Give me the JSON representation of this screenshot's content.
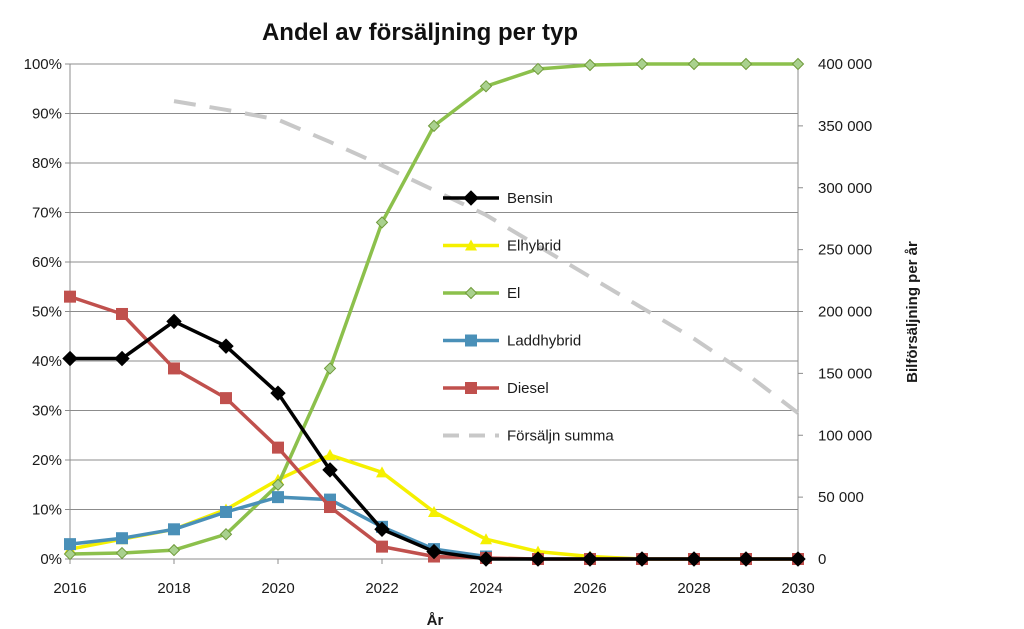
{
  "chart_data": {
    "type": "line",
    "title": "Andel av försäljning per typ",
    "xlabel": "År",
    "ylabel": "",
    "y2label": "Bilförsäljning per år",
    "xlim": [
      2016,
      2030
    ],
    "ylim": [
      0,
      100
    ],
    "y2lim": [
      0,
      400000
    ],
    "x_ticks": [
      "2016",
      "2018",
      "2020",
      "2022",
      "2024",
      "2026",
      "2028",
      "2030"
    ],
    "y_ticks": [
      "0%",
      "10%",
      "20%",
      "30%",
      "40%",
      "50%",
      "60%",
      "70%",
      "80%",
      "90%",
      "100%"
    ],
    "y2_ticks": [
      "0",
      "50 000",
      "100 000",
      "150 000",
      "200 000",
      "250 000",
      "300 000",
      "350 000",
      "400 000"
    ],
    "grid": true,
    "legend_position": "center",
    "series": [
      {
        "name": "Bensin",
        "axis": "left",
        "color": "#000000",
        "marker": "diamond",
        "dash": false,
        "x": [
          2016,
          2017,
          2018,
          2019,
          2020,
          2021,
          2022,
          2023,
          2024,
          2025,
          2026,
          2027,
          2028,
          2029,
          2030
        ],
        "values": [
          40.5,
          40.5,
          48,
          43,
          33.5,
          18,
          6,
          1.5,
          0,
          0,
          0,
          0,
          0,
          0,
          0
        ]
      },
      {
        "name": "Elhybrid",
        "axis": "left",
        "color": "#f5f000",
        "marker": "triangle",
        "dash": false,
        "x": [
          2016,
          2017,
          2018,
          2019,
          2020,
          2021,
          2022,
          2023,
          2024,
          2025,
          2026,
          2027,
          2028,
          2029,
          2030
        ],
        "values": [
          2,
          4,
          6,
          10,
          16,
          21,
          17.5,
          9.5,
          4,
          1.5,
          0.5,
          0,
          0,
          0,
          0
        ]
      },
      {
        "name": "El",
        "axis": "left",
        "color": "#8cc04c",
        "marker": "diamond",
        "dash": false,
        "x": [
          2016,
          2017,
          2018,
          2019,
          2020,
          2021,
          2022,
          2023,
          2024,
          2025,
          2026,
          2027,
          2028,
          2029,
          2030
        ],
        "values": [
          1,
          1.2,
          1.8,
          5,
          15,
          38.5,
          68,
          87.5,
          95.5,
          99,
          99.8,
          100,
          100,
          100,
          100
        ]
      },
      {
        "name": "Laddhybrid",
        "axis": "left",
        "color": "#4a90b8",
        "marker": "square",
        "dash": false,
        "x": [
          2016,
          2017,
          2018,
          2019,
          2020,
          2021,
          2022,
          2023,
          2024
        ],
        "values": [
          3,
          4.2,
          6,
          9.5,
          12.5,
          12,
          6.5,
          2,
          0.5
        ]
      },
      {
        "name": "Diesel",
        "axis": "left",
        "color": "#c0504d",
        "marker": "square",
        "dash": false,
        "x": [
          2016,
          2017,
          2018,
          2019,
          2020,
          2021,
          2022,
          2023,
          2024,
          2025,
          2026,
          2027,
          2028,
          2029,
          2030
        ],
        "values": [
          53,
          49.5,
          38.5,
          32.5,
          22.5,
          10.5,
          2.5,
          0.5,
          0.2,
          0,
          0,
          0,
          0,
          0,
          0
        ]
      },
      {
        "name": "Försäljn summa",
        "axis": "right",
        "color": "#c8c8c8",
        "marker": "none",
        "dash": true,
        "x": [
          2018,
          2019,
          2020,
          2021,
          2022,
          2023,
          2024,
          2025,
          2026,
          2027,
          2028,
          2029,
          2030
        ],
        "values": [
          370000,
          363000,
          355000,
          337000,
          318000,
          298000,
          278000,
          253000,
          228000,
          203000,
          178000,
          150000,
          118000
        ]
      }
    ]
  }
}
